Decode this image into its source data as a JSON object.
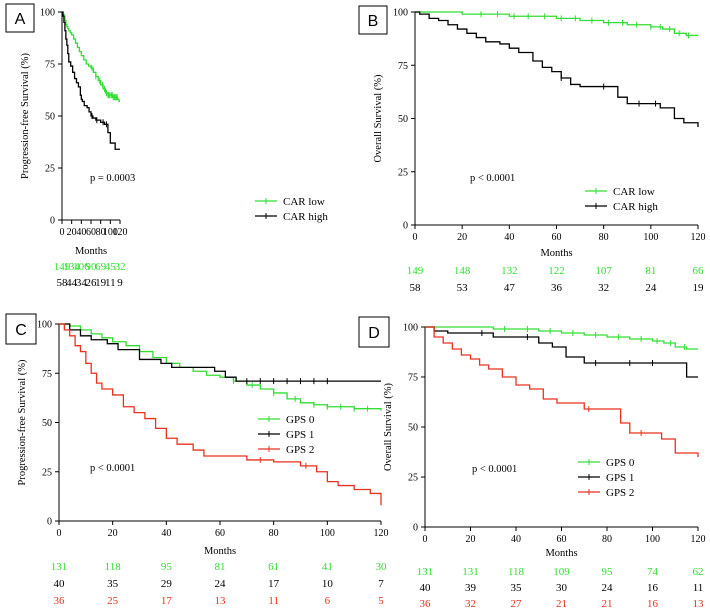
{
  "colors": {
    "green": "#33dd33",
    "black": "#000000",
    "red": "#e8321e"
  },
  "chart_data": [
    {
      "panel": "A",
      "type": "line",
      "title": "",
      "xlabel": "Months",
      "ylabel": "Progression-free Survival (%)",
      "xlim": [
        0,
        120
      ],
      "ylim": [
        0,
        100
      ],
      "xticks": [
        "0",
        "20",
        "40",
        "60",
        "80",
        "100",
        "120"
      ],
      "yticks": [
        "0",
        "25",
        "50",
        "75",
        "100"
      ],
      "pvalue": "p = 0.0003",
      "legend_position": "lower-right",
      "series": [
        {
          "name": "CAR low",
          "color": "#33dd33",
          "x": [
            0,
            2,
            4,
            6,
            8,
            10,
            12,
            14,
            17,
            20,
            24,
            28,
            32,
            36,
            40,
            45,
            50,
            55,
            60,
            65,
            70,
            75,
            80,
            85,
            90,
            95,
            100,
            105,
            110,
            115,
            118,
            120
          ],
          "y": [
            100,
            99,
            98,
            96,
            94,
            93,
            92,
            91,
            90,
            89,
            87,
            85,
            83,
            81,
            79,
            77,
            75,
            74,
            73,
            71,
            69,
            67,
            65,
            63,
            61,
            60,
            60,
            59,
            59,
            58,
            57,
            57
          ],
          "censor": [
            62,
            70,
            78,
            84,
            88,
            92,
            95,
            97,
            99,
            102,
            104,
            106,
            108,
            110,
            112,
            114
          ]
        },
        {
          "name": "CAR high",
          "color": "#000000",
          "x": [
            0,
            2,
            4,
            6,
            8,
            10,
            12,
            14,
            18,
            22,
            26,
            30,
            34,
            38,
            40,
            42,
            46,
            52,
            56,
            60,
            64,
            70,
            80,
            88,
            95,
            100,
            110,
            120
          ],
          "y": [
            100,
            98,
            95,
            91,
            87,
            84,
            80,
            76,
            74,
            71,
            68,
            66,
            64,
            60,
            58,
            57,
            55,
            54,
            52,
            50,
            49,
            48,
            47,
            46,
            42,
            37,
            34,
            34
          ],
          "censor": [
            62,
            72,
            85,
            92
          ]
        }
      ],
      "risk_table": [
        {
          "name": "CAR low",
          "color": "#33dd33",
          "counts": [
            "149",
            "134",
            "106",
            "90",
            "69",
            "45",
            "32"
          ]
        },
        {
          "name": "CAR high",
          "color": "#000000",
          "counts": [
            "58",
            "44",
            "34",
            "26",
            "19",
            "11",
            "9"
          ]
        }
      ]
    },
    {
      "panel": "B",
      "type": "line",
      "title": "",
      "xlabel": "Months",
      "ylabel": "Overall Survival (%)",
      "xlim": [
        0,
        120
      ],
      "ylim": [
        0,
        100
      ],
      "xticks": [
        "0",
        "20",
        "40",
        "60",
        "80",
        "100",
        "120"
      ],
      "yticks": [
        "0",
        "25",
        "50",
        "75",
        "100"
      ],
      "pvalue": "p < 0.0001",
      "legend_position": "lower-right",
      "series": [
        {
          "name": "CAR low",
          "color": "#33dd33",
          "x": [
            0,
            10,
            20,
            30,
            40,
            50,
            60,
            70,
            80,
            90,
            100,
            105,
            110,
            115,
            120
          ],
          "y": [
            100,
            100,
            99,
            99,
            98,
            98,
            97,
            96,
            95,
            94,
            93,
            92,
            90,
            89,
            89
          ],
          "censor": [
            28,
            35,
            42,
            48,
            55,
            62,
            68,
            75,
            82,
            88,
            94,
            100,
            104,
            108,
            112,
            116
          ]
        },
        {
          "name": "CAR high",
          "color": "#000000",
          "x": [
            0,
            2,
            6,
            10,
            14,
            18,
            22,
            26,
            30,
            36,
            40,
            44,
            50,
            54,
            58,
            62,
            66,
            70,
            78,
            86,
            90,
            100,
            104,
            110,
            114,
            120
          ],
          "y": [
            100,
            99,
            97,
            96,
            94,
            92,
            90,
            88,
            86,
            85,
            83,
            81,
            77,
            74,
            72,
            69,
            66,
            65,
            65,
            60,
            57,
            57,
            55,
            50,
            48,
            46
          ],
          "censor": [
            62,
            80,
            95,
            102
          ]
        }
      ],
      "risk_table": [
        {
          "name": "CAR low",
          "color": "#33dd33",
          "counts": [
            "149",
            "148",
            "132",
            "122",
            "107",
            "81",
            "66"
          ]
        },
        {
          "name": "CAR high",
          "color": "#000000",
          "counts": [
            "58",
            "53",
            "47",
            "36",
            "32",
            "24",
            "19"
          ]
        }
      ]
    },
    {
      "panel": "C",
      "type": "line",
      "title": "",
      "xlabel": "Months",
      "ylabel": "Progression-free Survival (%)",
      "xlim": [
        0,
        120
      ],
      "ylim": [
        0,
        100
      ],
      "xticks": [
        "0",
        "20",
        "40",
        "60",
        "80",
        "100",
        "120"
      ],
      "yticks": [
        "0",
        "25",
        "50",
        "75",
        "100"
      ],
      "pvalue": "p < 0.0001",
      "legend_position": "right",
      "series": [
        {
          "name": "GPS 0",
          "color": "#33dd33",
          "x": [
            0,
            4,
            8,
            12,
            16,
            20,
            25,
            30,
            35,
            40,
            45,
            50,
            55,
            60,
            65,
            70,
            75,
            80,
            85,
            90,
            95,
            100,
            110,
            120
          ],
          "y": [
            100,
            99,
            97,
            95,
            93,
            91,
            89,
            86,
            83,
            80,
            78,
            76,
            74,
            73,
            71,
            69,
            67,
            65,
            62,
            60,
            59,
            58,
            57,
            56
          ],
          "censor": [
            65,
            72,
            80,
            88,
            95,
            100,
            105,
            110,
            115
          ]
        },
        {
          "name": "GPS 1",
          "color": "#000000",
          "x": [
            0,
            4,
            8,
            12,
            18,
            22,
            30,
            38,
            42,
            52,
            58,
            62,
            66,
            120
          ],
          "y": [
            100,
            97,
            94,
            92,
            90,
            87,
            82,
            80,
            78,
            78,
            76,
            73,
            71,
            71
          ],
          "censor": [
            70,
            75,
            80,
            85,
            90,
            95,
            100
          ]
        },
        {
          "name": "GPS 2",
          "color": "#e8321e",
          "x": [
            0,
            2,
            4,
            6,
            8,
            10,
            12,
            14,
            16,
            20,
            24,
            28,
            32,
            36,
            40,
            44,
            50,
            54,
            60,
            70,
            80,
            90,
            96,
            100,
            104,
            110,
            116,
            120
          ],
          "y": [
            100,
            97,
            94,
            89,
            86,
            80,
            75,
            70,
            67,
            64,
            58,
            55,
            52,
            47,
            42,
            39,
            36,
            33,
            33,
            31,
            30,
            28,
            25,
            20,
            18,
            16,
            14,
            8
          ],
          "censor": [
            75,
            92
          ]
        }
      ],
      "risk_table": [
        {
          "name": "GPS 0",
          "color": "#33dd33",
          "counts": [
            "131",
            "118",
            "95",
            "81",
            "61",
            "41",
            "30"
          ]
        },
        {
          "name": "GPS 1",
          "color": "#000000",
          "counts": [
            "40",
            "35",
            "29",
            "24",
            "17",
            "10",
            "7"
          ]
        },
        {
          "name": "GPS 2",
          "color": "#e8321e",
          "counts": [
            "36",
            "25",
            "17",
            "13",
            "11",
            "6",
            "5"
          ]
        }
      ]
    },
    {
      "panel": "D",
      "type": "line",
      "title": "",
      "xlabel": "Months",
      "ylabel": "Overall Survival (%)",
      "xlim": [
        0,
        120
      ],
      "ylim": [
        0,
        100
      ],
      "xticks": [
        "0",
        "20",
        "40",
        "60",
        "80",
        "100",
        "120"
      ],
      "yticks": [
        "0",
        "25",
        "50",
        "75",
        "100"
      ],
      "pvalue": "p < 0.0001",
      "legend_position": "lower-right",
      "series": [
        {
          "name": "GPS 0",
          "color": "#33dd33",
          "x": [
            0,
            20,
            30,
            40,
            50,
            60,
            70,
            80,
            90,
            100,
            105,
            110,
            115,
            120
          ],
          "y": [
            100,
            100,
            99,
            99,
            98,
            97,
            96,
            95,
            94,
            93,
            92,
            90,
            89,
            89
          ],
          "censor": [
            35,
            45,
            55,
            65,
            75,
            85,
            95,
            102,
            108,
            114
          ]
        },
        {
          "name": "GPS 1",
          "color": "#000000",
          "x": [
            0,
            4,
            10,
            20,
            30,
            40,
            50,
            56,
            62,
            70,
            80,
            110,
            115,
            120
          ],
          "y": [
            100,
            98,
            97,
            97,
            95,
            95,
            92,
            90,
            85,
            82,
            82,
            82,
            75,
            75
          ],
          "censor": [
            25,
            45,
            75,
            90,
            100
          ]
        },
        {
          "name": "GPS 2",
          "color": "#e8321e",
          "x": [
            0,
            4,
            8,
            12,
            16,
            20,
            24,
            28,
            34,
            40,
            46,
            52,
            58,
            70,
            82,
            86,
            90,
            100,
            104,
            110,
            120
          ],
          "y": [
            100,
            95,
            92,
            89,
            86,
            84,
            81,
            79,
            75,
            71,
            69,
            64,
            62,
            59,
            59,
            52,
            47,
            47,
            44,
            37,
            35
          ],
          "censor": [
            72,
            95
          ]
        }
      ],
      "risk_table": [
        {
          "name": "GPS 0",
          "color": "#33dd33",
          "counts": [
            "131",
            "131",
            "118",
            "109",
            "95",
            "74",
            "62"
          ]
        },
        {
          "name": "GPS 1",
          "color": "#000000",
          "counts": [
            "40",
            "39",
            "35",
            "30",
            "24",
            "16",
            "11"
          ]
        },
        {
          "name": "GPS 2",
          "color": "#e8321e",
          "counts": [
            "36",
            "32",
            "27",
            "21",
            "21",
            "16",
            "13"
          ]
        }
      ]
    }
  ]
}
